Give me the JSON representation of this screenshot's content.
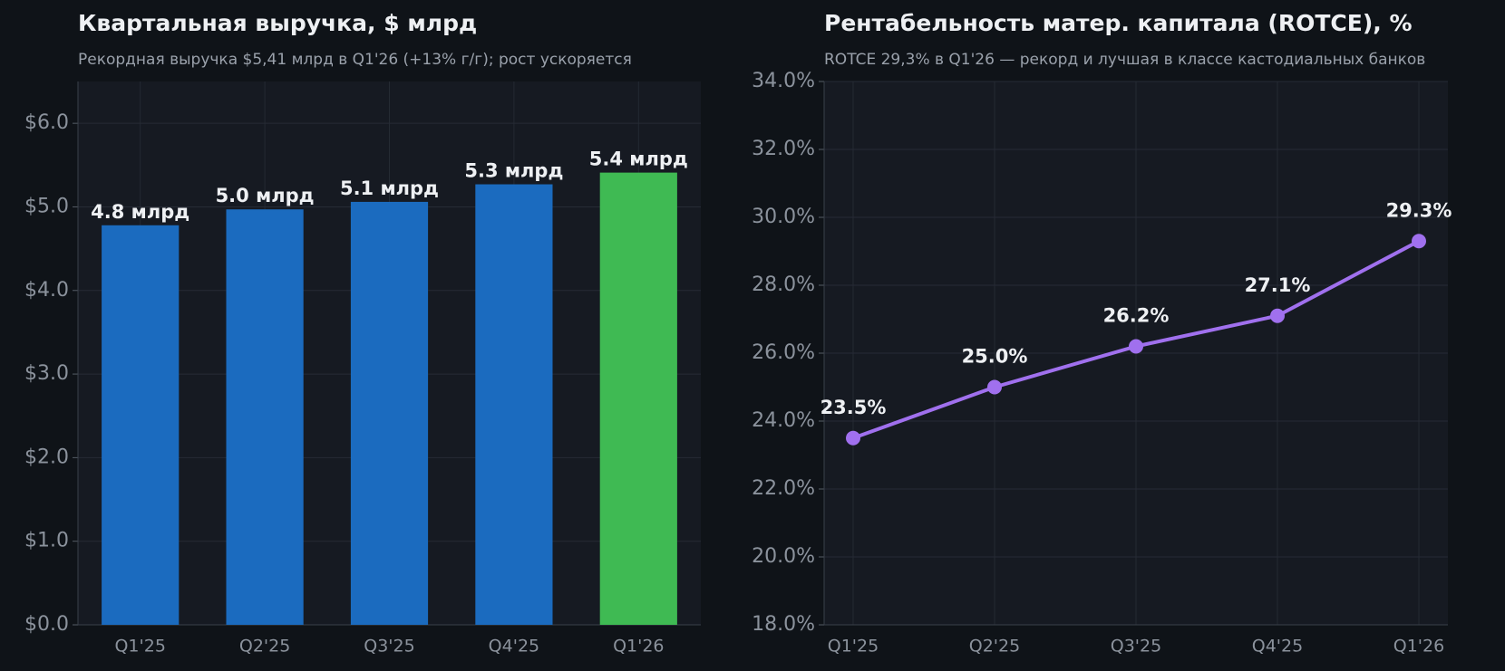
{
  "chart_data": [
    {
      "type": "bar",
      "title": "Квартальная выручка, $ млрд",
      "subtitle": "Рекордная выручка $5,41 млрд в Q1'26 (+13% г/г); рост ускоряется",
      "categories": [
        "Q1'25",
        "Q2'25",
        "Q3'25",
        "Q4'25",
        "Q1'26"
      ],
      "values": [
        4.78,
        4.97,
        5.06,
        5.27,
        5.41
      ],
      "value_labels": [
        "4.8 млрд",
        "5.0 млрд",
        "5.1 млрд",
        "5.3 млрд",
        "5.4 млрд"
      ],
      "colors": [
        "#1b6bbf",
        "#1b6bbf",
        "#1b6bbf",
        "#1b6bbf",
        "#3fba53"
      ],
      "ylim": [
        0,
        6.5
      ],
      "yticks": [
        {
          "value": 0,
          "label": "$0.0"
        },
        {
          "value": 1,
          "label": "$1.0"
        },
        {
          "value": 2,
          "label": "$2.0"
        },
        {
          "value": 3,
          "label": "$3.0"
        },
        {
          "value": 4,
          "label": "$4.0"
        },
        {
          "value": 5,
          "label": "$5.0"
        },
        {
          "value": 6,
          "label": "$6.0"
        }
      ],
      "grid": true
    },
    {
      "type": "line",
      "title": "Рентабельность матер. капитала (ROTCE), %",
      "subtitle": "ROTCE 29,3% в Q1'26 — рекорд и лучшая в классе кастодиальных банков",
      "categories": [
        "Q1'25",
        "Q2'25",
        "Q3'25",
        "Q4'25",
        "Q1'26"
      ],
      "values": [
        23.5,
        25.0,
        26.2,
        27.1,
        29.3
      ],
      "value_labels": [
        "23.5%",
        "25.0%",
        "26.2%",
        "27.1%",
        "29.3%"
      ],
      "color": "#a070ee",
      "ylim": [
        18,
        34
      ],
      "yticks": [
        {
          "value": 18,
          "label": "18.0%"
        },
        {
          "value": 20,
          "label": "20.0%"
        },
        {
          "value": 22,
          "label": "22.0%"
        },
        {
          "value": 24,
          "label": "24.0%"
        },
        {
          "value": 26,
          "label": "26.0%"
        },
        {
          "value": 28,
          "label": "28.0%"
        },
        {
          "value": 30,
          "label": "30.0%"
        },
        {
          "value": 32,
          "label": "32.0%"
        },
        {
          "value": 34,
          "label": "34.0%"
        }
      ],
      "grid": true
    }
  ]
}
